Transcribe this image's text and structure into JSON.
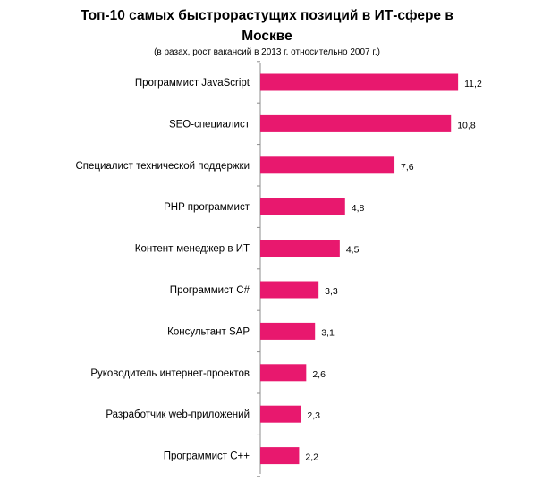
{
  "chart_data": {
    "type": "bar",
    "orientation": "horizontal",
    "title_line1": "Топ-10 самых быстрорастущих позиций в ИТ-сфере в",
    "title_line2": "Москве",
    "subtitle": "(в разах, рост вакансий в 2013 г. относительно 2007 г.)",
    "categories": [
      "Программист JavaScript",
      "SEO-специалист",
      "Специалист технической поддержки",
      "PHP программист",
      "Контент-менеджер в ИТ",
      "Программист C#",
      "Консультант SAP",
      "Руководитель интернет-проектов",
      "Разработчик web-приложений",
      "Программист C++"
    ],
    "values": [
      11.2,
      10.8,
      7.6,
      4.8,
      4.5,
      3.3,
      3.1,
      2.6,
      2.3,
      2.2
    ],
    "value_labels": [
      "11,2",
      "10,8",
      "7,6",
      "4,8",
      "4,5",
      "3,3",
      "3,1",
      "2,6",
      "2,3",
      "2,2"
    ],
    "xlim": [
      0,
      11.7
    ],
    "bar_color": "#E8186E",
    "grid": false,
    "legend": "none"
  }
}
